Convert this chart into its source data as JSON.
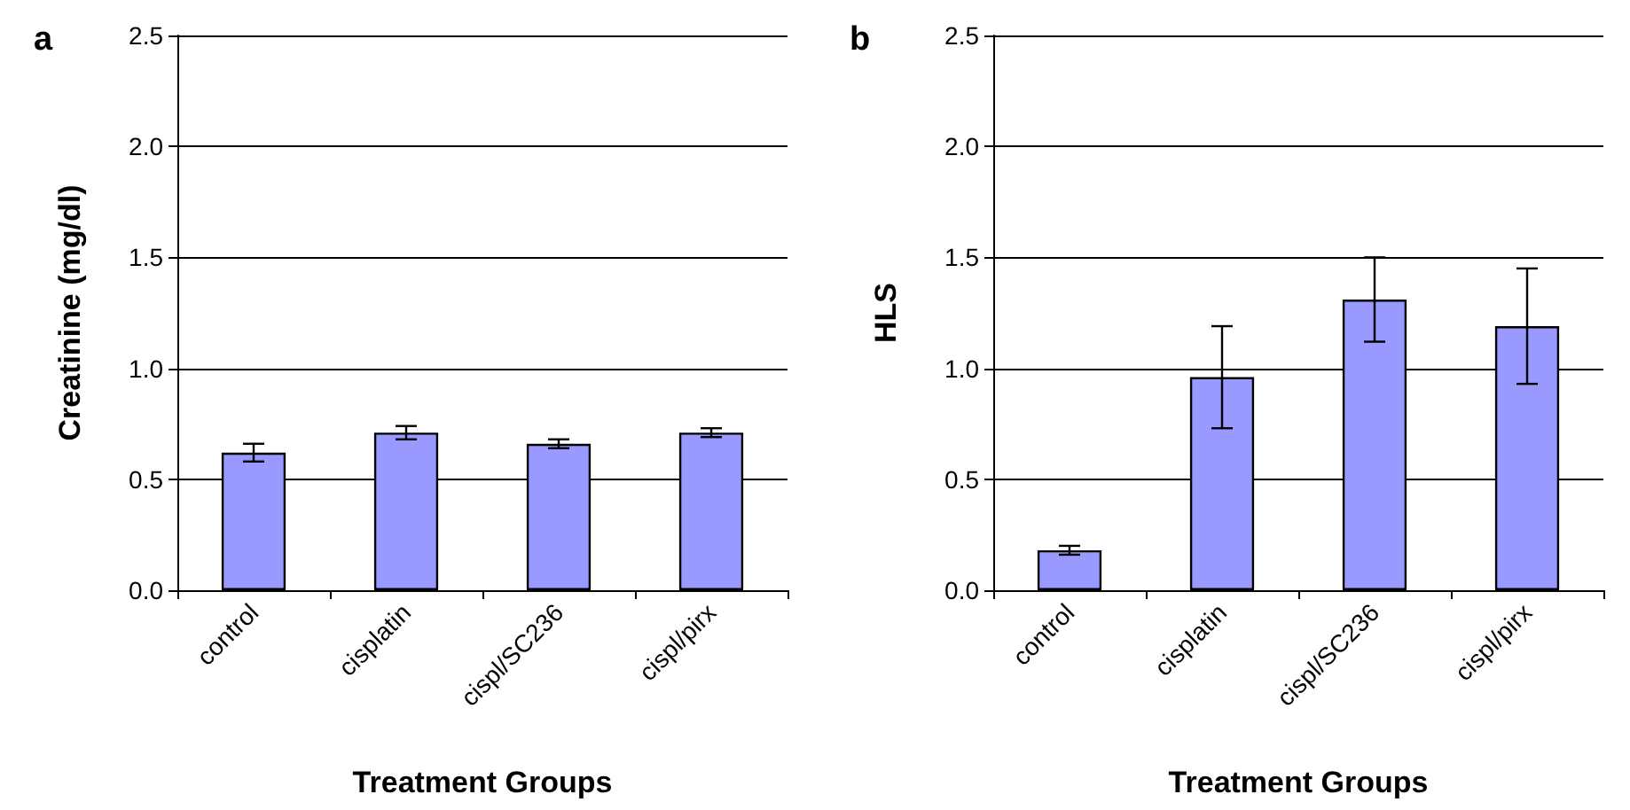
{
  "chart_data": [
    {
      "type": "bar",
      "title": "a",
      "xlabel": "Treatment Groups",
      "ylabel": "Creatinine (mg/dl)",
      "categories": [
        "control",
        "cisplatin",
        "cispl/SC236",
        "cispl/pirx"
      ],
      "values": [
        0.62,
        0.71,
        0.66,
        0.71
      ],
      "errors": [
        0.04,
        0.03,
        0.02,
        0.02
      ],
      "color": "#9999ff",
      "ylim": [
        0,
        2.5
      ],
      "yticks": [
        {
          "value": 0,
          "label": "0.0"
        },
        {
          "value": 0.5,
          "label": "0.5"
        },
        {
          "value": 1,
          "label": "1.0"
        },
        {
          "value": 1.5,
          "label": "1.5"
        },
        {
          "value": 2,
          "label": "2.0"
        },
        {
          "value": 2.5,
          "label": "2.5"
        }
      ],
      "grid": "y"
    },
    {
      "type": "bar",
      "title": "b",
      "xlabel": "Treatment Groups",
      "ylabel": "HLS",
      "categories": [
        "control",
        "cisplatin",
        "cispl/SC236",
        "cispl/pirx"
      ],
      "values": [
        0.18,
        0.96,
        1.31,
        1.19
      ],
      "errors": [
        0.02,
        0.23,
        0.19,
        0.26
      ],
      "color": "#9999ff",
      "ylim": [
        0,
        2.5
      ],
      "yticks": [
        {
          "value": 0,
          "label": "0.0"
        },
        {
          "value": 0.5,
          "label": "0.5"
        },
        {
          "value": 1,
          "label": "1.0"
        },
        {
          "value": 1.5,
          "label": "1.5"
        },
        {
          "value": 2,
          "label": "2.0"
        },
        {
          "value": 2.5,
          "label": "2.5"
        }
      ],
      "grid": "y"
    }
  ]
}
